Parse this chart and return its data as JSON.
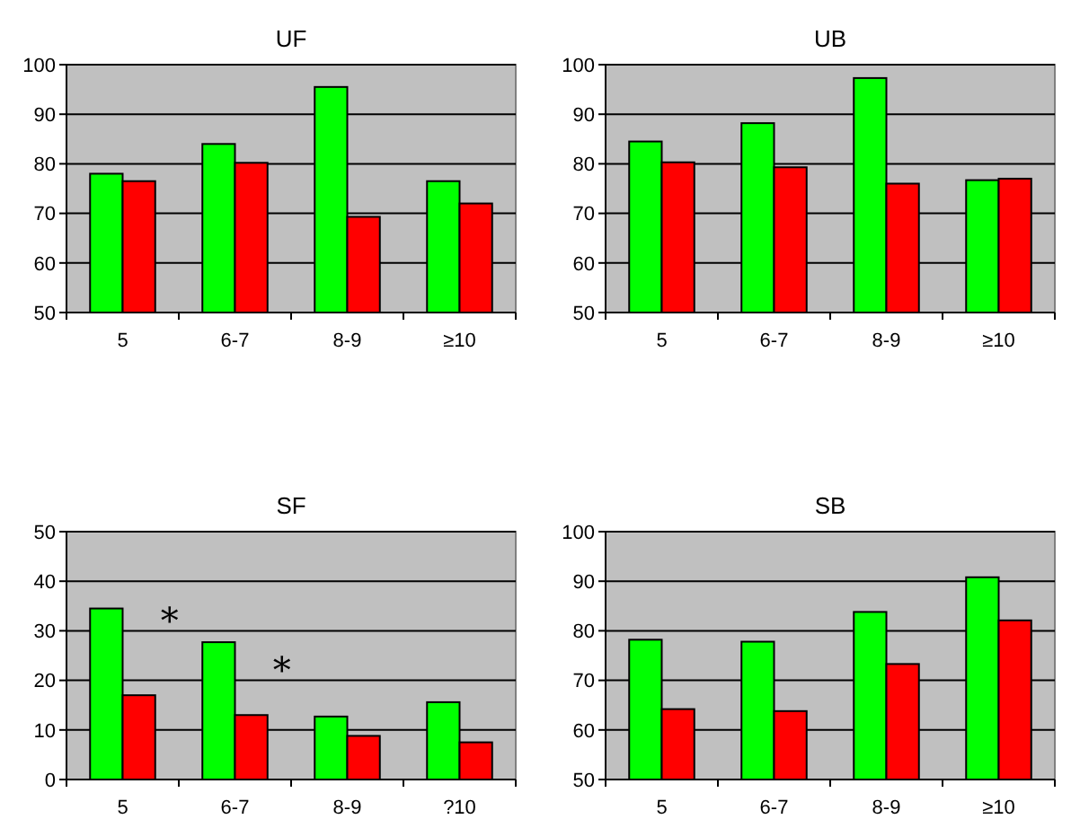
{
  "chart_data": [
    {
      "type": "bar",
      "title": "UF",
      "categories": [
        "5",
        "6-7",
        "8-9",
        "≥10"
      ],
      "series": [
        {
          "color": "#00ff00",
          "values": [
            78,
            84,
            95.5,
            76.5
          ]
        },
        {
          "color": "#ff0000",
          "values": [
            76.5,
            80.2,
            69.3,
            72
          ]
        }
      ],
      "ylim": [
        50,
        100
      ],
      "yticks": [
        50,
        60,
        70,
        80,
        90,
        100
      ],
      "grid": "y"
    },
    {
      "type": "bar",
      "title": "UB",
      "categories": [
        "5",
        "6-7",
        "8-9",
        "≥10"
      ],
      "series": [
        {
          "color": "#00ff00",
          "values": [
            84.5,
            88.2,
            97.3,
            76.7
          ]
        },
        {
          "color": "#ff0000",
          "values": [
            80.3,
            79.3,
            76,
            77
          ]
        }
      ],
      "ylim": [
        50,
        100
      ],
      "yticks": [
        50,
        60,
        70,
        80,
        90,
        100
      ],
      "grid": "y"
    },
    {
      "type": "bar",
      "title": "SF",
      "categories": [
        "5",
        "6-7",
        "8-9",
        "?10"
      ],
      "series": [
        {
          "color": "#00ff00",
          "values": [
            34.5,
            27.7,
            12.7,
            15.6
          ]
        },
        {
          "color": "#ff0000",
          "values": [
            17,
            13,
            8.8,
            7.5
          ]
        }
      ],
      "ylim": [
        0,
        50
      ],
      "yticks": [
        0,
        10,
        20,
        30,
        40,
        50
      ],
      "grid": "y",
      "annotations": [
        {
          "text": "*",
          "x": "5",
          "y": 32.5
        },
        {
          "text": "*",
          "x": "6-7",
          "y": 22.5
        }
      ]
    },
    {
      "type": "bar",
      "title": "SB",
      "categories": [
        "5",
        "6-7",
        "8-9",
        "≥10"
      ],
      "series": [
        {
          "color": "#00ff00",
          "values": [
            78.2,
            77.8,
            83.8,
            90.8
          ]
        },
        {
          "color": "#ff0000",
          "values": [
            64.2,
            63.8,
            73.3,
            82.1
          ]
        }
      ],
      "ylim": [
        50,
        100
      ],
      "yticks": [
        50,
        60,
        70,
        80,
        90,
        100
      ],
      "grid": "y"
    }
  ]
}
